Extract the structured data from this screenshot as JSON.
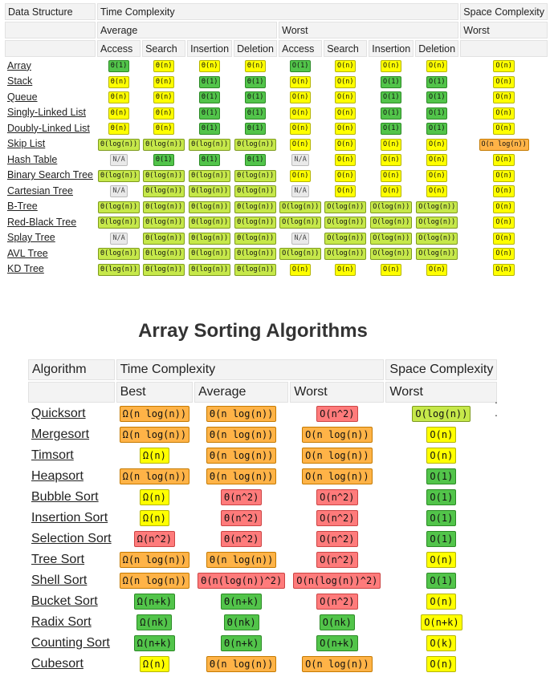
{
  "table1": {
    "header1": [
      "Data Structure",
      "Time Complexity",
      "Space Complexity"
    ],
    "header2": [
      "Average",
      "Worst",
      "Worst"
    ],
    "header3": [
      "Access",
      "Search",
      "Insertion",
      "Deletion",
      "Access",
      "Search",
      "Insertion",
      "Deletion"
    ],
    "rows": [
      {
        "name": "Array",
        "cells": [
          [
            "Θ(1)",
            "g"
          ],
          [
            "Θ(n)",
            "y"
          ],
          [
            "Θ(n)",
            "y"
          ],
          [
            "Θ(n)",
            "y"
          ],
          [
            "O(1)",
            "g"
          ],
          [
            "O(n)",
            "y"
          ],
          [
            "O(n)",
            "y"
          ],
          [
            "O(n)",
            "y"
          ],
          [
            "O(n)",
            "y"
          ]
        ]
      },
      {
        "name": "Stack",
        "cells": [
          [
            "Θ(n)",
            "y"
          ],
          [
            "Θ(n)",
            "y"
          ],
          [
            "Θ(1)",
            "g"
          ],
          [
            "Θ(1)",
            "g"
          ],
          [
            "O(n)",
            "y"
          ],
          [
            "O(n)",
            "y"
          ],
          [
            "O(1)",
            "g"
          ],
          [
            "O(1)",
            "g"
          ],
          [
            "O(n)",
            "y"
          ]
        ]
      },
      {
        "name": "Queue",
        "cells": [
          [
            "Θ(n)",
            "y"
          ],
          [
            "Θ(n)",
            "y"
          ],
          [
            "Θ(1)",
            "g"
          ],
          [
            "Θ(1)",
            "g"
          ],
          [
            "O(n)",
            "y"
          ],
          [
            "O(n)",
            "y"
          ],
          [
            "O(1)",
            "g"
          ],
          [
            "O(1)",
            "g"
          ],
          [
            "O(n)",
            "y"
          ]
        ]
      },
      {
        "name": "Singly-Linked List",
        "cells": [
          [
            "Θ(n)",
            "y"
          ],
          [
            "Θ(n)",
            "y"
          ],
          [
            "Θ(1)",
            "g"
          ],
          [
            "Θ(1)",
            "g"
          ],
          [
            "O(n)",
            "y"
          ],
          [
            "O(n)",
            "y"
          ],
          [
            "O(1)",
            "g"
          ],
          [
            "O(1)",
            "g"
          ],
          [
            "O(n)",
            "y"
          ]
        ]
      },
      {
        "name": "Doubly-Linked List",
        "cells": [
          [
            "Θ(n)",
            "y"
          ],
          [
            "Θ(n)",
            "y"
          ],
          [
            "Θ(1)",
            "g"
          ],
          [
            "Θ(1)",
            "g"
          ],
          [
            "O(n)",
            "y"
          ],
          [
            "O(n)",
            "y"
          ],
          [
            "O(1)",
            "g"
          ],
          [
            "O(1)",
            "g"
          ],
          [
            "O(n)",
            "y"
          ]
        ]
      },
      {
        "name": "Skip List",
        "cells": [
          [
            "Θ(log(n))",
            "lg"
          ],
          [
            "Θ(log(n))",
            "lg"
          ],
          [
            "Θ(log(n))",
            "lg"
          ],
          [
            "Θ(log(n))",
            "lg"
          ],
          [
            "O(n)",
            "y"
          ],
          [
            "O(n)",
            "y"
          ],
          [
            "O(n)",
            "y"
          ],
          [
            "O(n)",
            "y"
          ],
          [
            "O(n log(n))",
            "o"
          ]
        ]
      },
      {
        "name": "Hash Table",
        "cells": [
          [
            "N/A",
            "na"
          ],
          [
            "Θ(1)",
            "g"
          ],
          [
            "Θ(1)",
            "g"
          ],
          [
            "Θ(1)",
            "g"
          ],
          [
            "N/A",
            "na"
          ],
          [
            "O(n)",
            "y"
          ],
          [
            "O(n)",
            "y"
          ],
          [
            "O(n)",
            "y"
          ],
          [
            "O(n)",
            "y"
          ]
        ]
      },
      {
        "name": "Binary Search Tree",
        "cells": [
          [
            "Θ(log(n))",
            "lg"
          ],
          [
            "Θ(log(n))",
            "lg"
          ],
          [
            "Θ(log(n))",
            "lg"
          ],
          [
            "Θ(log(n))",
            "lg"
          ],
          [
            "O(n)",
            "y"
          ],
          [
            "O(n)",
            "y"
          ],
          [
            "O(n)",
            "y"
          ],
          [
            "O(n)",
            "y"
          ],
          [
            "O(n)",
            "y"
          ]
        ]
      },
      {
        "name": "Cartesian Tree",
        "cells": [
          [
            "N/A",
            "na"
          ],
          [
            "Θ(log(n))",
            "lg"
          ],
          [
            "Θ(log(n))",
            "lg"
          ],
          [
            "Θ(log(n))",
            "lg"
          ],
          [
            "N/A",
            "na"
          ],
          [
            "O(n)",
            "y"
          ],
          [
            "O(n)",
            "y"
          ],
          [
            "O(n)",
            "y"
          ],
          [
            "O(n)",
            "y"
          ]
        ]
      },
      {
        "name": "B-Tree",
        "cells": [
          [
            "Θ(log(n))",
            "lg"
          ],
          [
            "Θ(log(n))",
            "lg"
          ],
          [
            "Θ(log(n))",
            "lg"
          ],
          [
            "Θ(log(n))",
            "lg"
          ],
          [
            "O(log(n))",
            "lg"
          ],
          [
            "O(log(n))",
            "lg"
          ],
          [
            "O(log(n))",
            "lg"
          ],
          [
            "O(log(n))",
            "lg"
          ],
          [
            "O(n)",
            "y"
          ]
        ]
      },
      {
        "name": "Red-Black Tree",
        "cells": [
          [
            "Θ(log(n))",
            "lg"
          ],
          [
            "Θ(log(n))",
            "lg"
          ],
          [
            "Θ(log(n))",
            "lg"
          ],
          [
            "Θ(log(n))",
            "lg"
          ],
          [
            "O(log(n))",
            "lg"
          ],
          [
            "O(log(n))",
            "lg"
          ],
          [
            "O(log(n))",
            "lg"
          ],
          [
            "O(log(n))",
            "lg"
          ],
          [
            "O(n)",
            "y"
          ]
        ]
      },
      {
        "name": "Splay Tree",
        "cells": [
          [
            "N/A",
            "na"
          ],
          [
            "Θ(log(n))",
            "lg"
          ],
          [
            "Θ(log(n))",
            "lg"
          ],
          [
            "Θ(log(n))",
            "lg"
          ],
          [
            "N/A",
            "na"
          ],
          [
            "O(log(n))",
            "lg"
          ],
          [
            "O(log(n))",
            "lg"
          ],
          [
            "O(log(n))",
            "lg"
          ],
          [
            "O(n)",
            "y"
          ]
        ]
      },
      {
        "name": "AVL Tree",
        "cells": [
          [
            "Θ(log(n))",
            "lg"
          ],
          [
            "Θ(log(n))",
            "lg"
          ],
          [
            "Θ(log(n))",
            "lg"
          ],
          [
            "Θ(log(n))",
            "lg"
          ],
          [
            "O(log(n))",
            "lg"
          ],
          [
            "O(log(n))",
            "lg"
          ],
          [
            "O(log(n))",
            "lg"
          ],
          [
            "O(log(n))",
            "lg"
          ],
          [
            "O(n)",
            "y"
          ]
        ]
      },
      {
        "name": "KD Tree",
        "cells": [
          [
            "Θ(log(n))",
            "lg"
          ],
          [
            "Θ(log(n))",
            "lg"
          ],
          [
            "Θ(log(n))",
            "lg"
          ],
          [
            "Θ(log(n))",
            "lg"
          ],
          [
            "O(n)",
            "y"
          ],
          [
            "O(n)",
            "y"
          ],
          [
            "O(n)",
            "y"
          ],
          [
            "O(n)",
            "y"
          ],
          [
            "O(n)",
            "y"
          ]
        ]
      }
    ]
  },
  "section_title": "Array Sorting Algorithms",
  "table2": {
    "header1": [
      "Algorithm",
      "Time Complexity",
      "Space Complexity"
    ],
    "header2": [
      "Best",
      "Average",
      "Worst",
      "Worst"
    ],
    "rows": [
      {
        "name": "Quicksort",
        "cells": [
          [
            "Ω(n log(n))",
            "o"
          ],
          [
            "Θ(n log(n))",
            "o"
          ],
          [
            "O(n^2)",
            "r"
          ],
          [
            "O(log(n))",
            "lg"
          ]
        ]
      },
      {
        "name": "Mergesort",
        "cells": [
          [
            "Ω(n log(n))",
            "o"
          ],
          [
            "Θ(n log(n))",
            "o"
          ],
          [
            "O(n log(n))",
            "o"
          ],
          [
            "O(n)",
            "y"
          ]
        ]
      },
      {
        "name": "Timsort",
        "cells": [
          [
            "Ω(n)",
            "y"
          ],
          [
            "Θ(n log(n))",
            "o"
          ],
          [
            "O(n log(n))",
            "o"
          ],
          [
            "O(n)",
            "y"
          ]
        ]
      },
      {
        "name": "Heapsort",
        "cells": [
          [
            "Ω(n log(n))",
            "o"
          ],
          [
            "Θ(n log(n))",
            "o"
          ],
          [
            "O(n log(n))",
            "o"
          ],
          [
            "O(1)",
            "g"
          ]
        ]
      },
      {
        "name": "Bubble Sort",
        "cells": [
          [
            "Ω(n)",
            "y"
          ],
          [
            "Θ(n^2)",
            "r"
          ],
          [
            "O(n^2)",
            "r"
          ],
          [
            "O(1)",
            "g"
          ]
        ]
      },
      {
        "name": "Insertion Sort",
        "cells": [
          [
            "Ω(n)",
            "y"
          ],
          [
            "Θ(n^2)",
            "r"
          ],
          [
            "O(n^2)",
            "r"
          ],
          [
            "O(1)",
            "g"
          ]
        ]
      },
      {
        "name": "Selection Sort",
        "cells": [
          [
            "Ω(n^2)",
            "r"
          ],
          [
            "Θ(n^2)",
            "r"
          ],
          [
            "O(n^2)",
            "r"
          ],
          [
            "O(1)",
            "g"
          ]
        ]
      },
      {
        "name": "Tree Sort",
        "cells": [
          [
            "Ω(n log(n))",
            "o"
          ],
          [
            "Θ(n log(n))",
            "o"
          ],
          [
            "O(n^2)",
            "r"
          ],
          [
            "O(n)",
            "y"
          ]
        ]
      },
      {
        "name": "Shell Sort",
        "cells": [
          [
            "Ω(n log(n))",
            "o"
          ],
          [
            "Θ(n(log(n))^2)",
            "r"
          ],
          [
            "O(n(log(n))^2)",
            "r"
          ],
          [
            "O(1)",
            "g"
          ]
        ]
      },
      {
        "name": "Bucket Sort",
        "cells": [
          [
            "Ω(n+k)",
            "g"
          ],
          [
            "Θ(n+k)",
            "g"
          ],
          [
            "O(n^2)",
            "r"
          ],
          [
            "O(n)",
            "y"
          ]
        ]
      },
      {
        "name": "Radix Sort",
        "cells": [
          [
            "Ω(nk)",
            "g"
          ],
          [
            "Θ(nk)",
            "g"
          ],
          [
            "O(nk)",
            "g"
          ],
          [
            "O(n+k)",
            "y"
          ]
        ]
      },
      {
        "name": "Counting Sort",
        "cells": [
          [
            "Ω(n+k)",
            "g"
          ],
          [
            "Θ(n+k)",
            "g"
          ],
          [
            "O(n+k)",
            "g"
          ],
          [
            "O(k)",
            "y"
          ]
        ]
      },
      {
        "name": "Cubesort",
        "cells": [
          [
            "Ω(n)",
            "y"
          ],
          [
            "Θ(n log(n))",
            "o"
          ],
          [
            "O(n log(n))",
            "o"
          ],
          [
            "O(n)",
            "y"
          ]
        ]
      }
    ]
  },
  "colors": {
    "y": "#ffff00",
    "g": "#52c44a",
    "lg": "#c6e84a",
    "o": "#ffb347",
    "r": "#ff7b7b",
    "na": "#e9e9e9"
  },
  "dots": ".\n."
}
